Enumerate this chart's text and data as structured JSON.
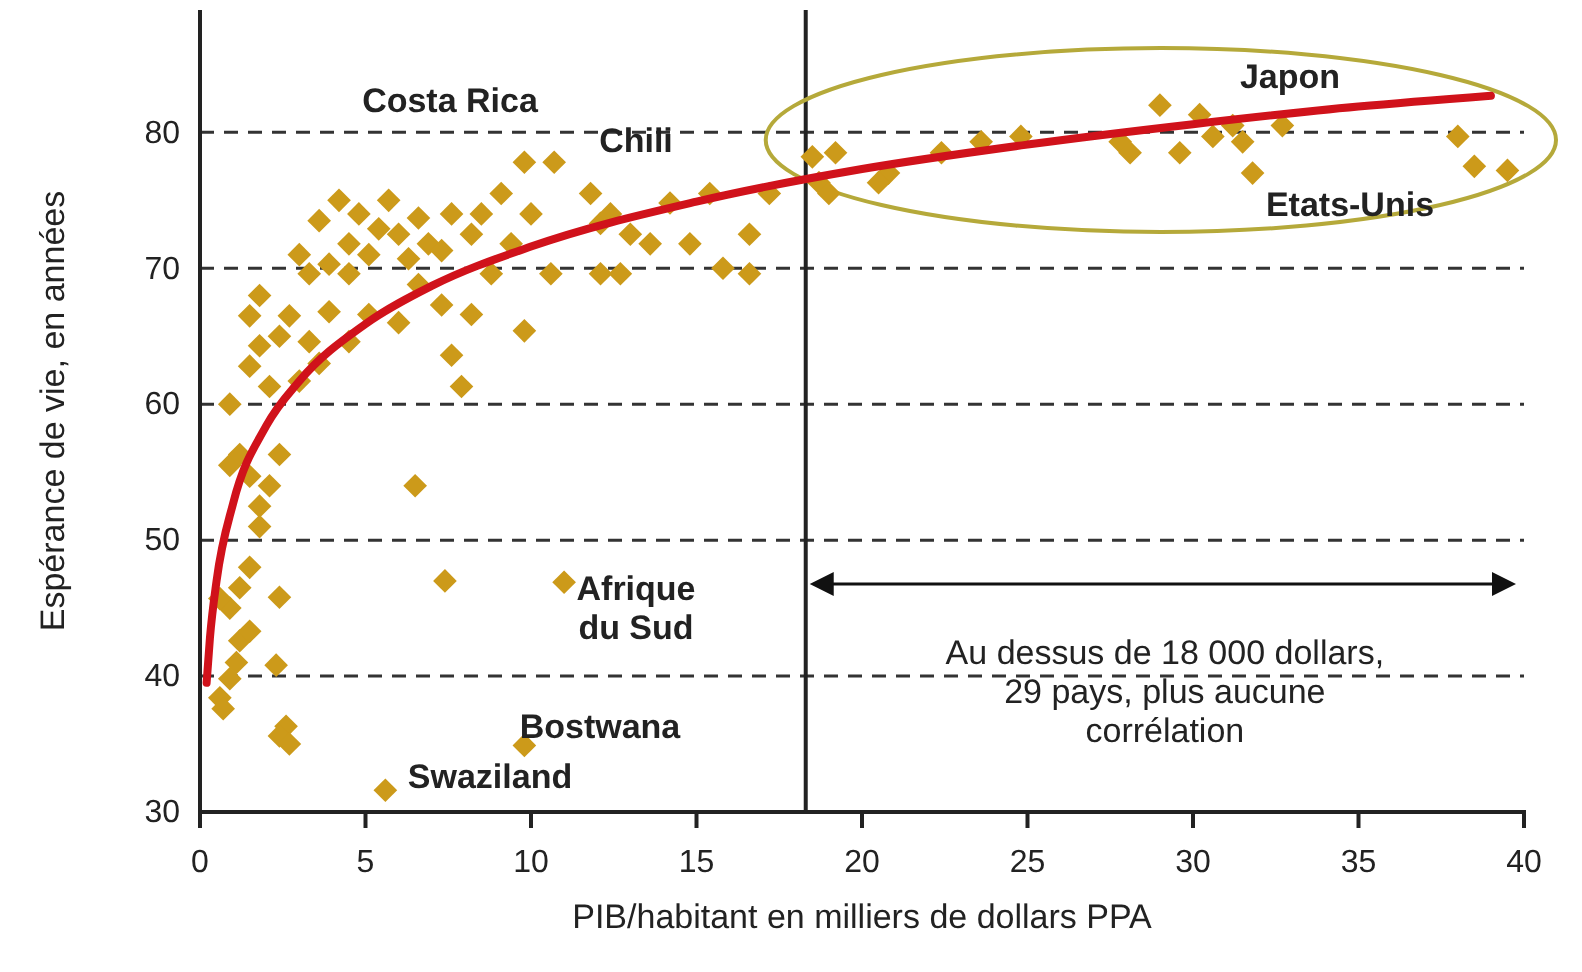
{
  "chart_data": {
    "type": "scatter",
    "xlabel": "PIB/habitant en milliers de dollars PPA",
    "ylabel": "Espérance de vie, en années",
    "xlim": [
      0,
      40
    ],
    "ylim": [
      30,
      89
    ],
    "xticks": [
      0,
      5,
      10,
      15,
      20,
      25,
      30,
      35,
      40
    ],
    "yticks": [
      30,
      40,
      50,
      60,
      70,
      80
    ],
    "grid": "y",
    "series": [
      {
        "marker": "diamond",
        "color": "#cc9a1a",
        "x": [
          0.6,
          0.9,
          0.7,
          1.1,
          1.2,
          1.5,
          0.9,
          1.2,
          0.6,
          1.5,
          2.4,
          2.3,
          2.6,
          2.4,
          2.7,
          5.6,
          9.8,
          11,
          7.4,
          6.5,
          0.9,
          1.5,
          1.8,
          2.1,
          2.4,
          1.8,
          1.2,
          0.9,
          1.5,
          1.8,
          2.1,
          2.4,
          3,
          3.3,
          2.7,
          1.8,
          1.5,
          3.6,
          3.9,
          4.5,
          5.1,
          6,
          6.6,
          7.3,
          7.6,
          8.2,
          7.9,
          9.8,
          3.9,
          4.5,
          4.8,
          5.4,
          6,
          6.6,
          6.9,
          7.6,
          5.7,
          4.2,
          3.6,
          3.3,
          3,
          4.5,
          5.1,
          6.3,
          7.3,
          8.2,
          8.5,
          9.1,
          10,
          9.4,
          10.6,
          8.8,
          9.8,
          10.7,
          11.8,
          12.1,
          12.4,
          12.1,
          12.7,
          13,
          13.6,
          14.2,
          14.8,
          15.4,
          16.6,
          15.8,
          17.2,
          16.6,
          18.5,
          18.7,
          19,
          19.2,
          20.8,
          20.5,
          22.4,
          23.6,
          24.8,
          27.8,
          28.1,
          29,
          29.6,
          30.2,
          30.6,
          31.2,
          31.5,
          31.8,
          32.7,
          38,
          38.5,
          39.5
        ],
        "values": [
          38.4,
          39.8,
          37.6,
          41,
          42.6,
          43.3,
          45,
          46.5,
          45.7,
          48,
          45.8,
          40.8,
          36.3,
          35.6,
          35,
          31.6,
          34.9,
          46.9,
          47,
          54,
          55.5,
          54.7,
          52.5,
          54,
          56.3,
          51,
          56.3,
          60,
          62.8,
          64.3,
          61.3,
          65,
          61.7,
          64.6,
          66.5,
          68,
          66.5,
          63,
          66.8,
          64.6,
          66.6,
          66,
          68.8,
          67.3,
          63.6,
          66.6,
          61.3,
          65.4,
          70.3,
          71.8,
          74,
          72.9,
          72.5,
          73.7,
          71.8,
          74,
          75,
          75,
          73.5,
          69.6,
          71,
          69.6,
          71,
          70.7,
          71.3,
          72.5,
          74,
          75.5,
          74,
          71.8,
          69.6,
          69.6,
          77.8,
          77.8,
          75.5,
          73.3,
          74,
          69.6,
          69.6,
          72.5,
          71.8,
          74.8,
          71.8,
          75.5,
          72.5,
          70,
          75.5,
          69.6,
          78.2,
          76.3,
          75.5,
          78.5,
          77,
          76.3,
          78.5,
          79.3,
          79.7,
          79.3,
          78.5,
          82,
          78.5,
          81.3,
          79.7,
          80.5,
          79.3,
          77,
          80.5,
          79.7,
          77.5,
          77.2
        ]
      },
      {
        "type": "line",
        "marker": "none",
        "color": "#d0121b",
        "x": [
          0.2,
          0.3,
          0.5,
          1,
          2,
          3,
          5,
          7,
          10,
          15,
          20,
          25,
          30,
          35,
          39
        ],
        "values": [
          39.5,
          42.8,
          47,
          52.7,
          58.4,
          61.7,
          65.9,
          68.7,
          71.6,
          74.9,
          77.3,
          79.1,
          80.6,
          81.9,
          82.7
        ]
      }
    ],
    "ref_lines": [
      {
        "axis": "x",
        "value": 18.3,
        "color": "#222222",
        "line_style": "solid"
      }
    ],
    "annotations": [
      "Costa Rica",
      "Chili",
      "Japon",
      "Etats-Unis",
      "Afrique du Sud",
      "Bostwana",
      "Swaziland",
      "Au dessus de 18 000 dollars, 29 pays, plus aucune corrélation"
    ]
  }
}
